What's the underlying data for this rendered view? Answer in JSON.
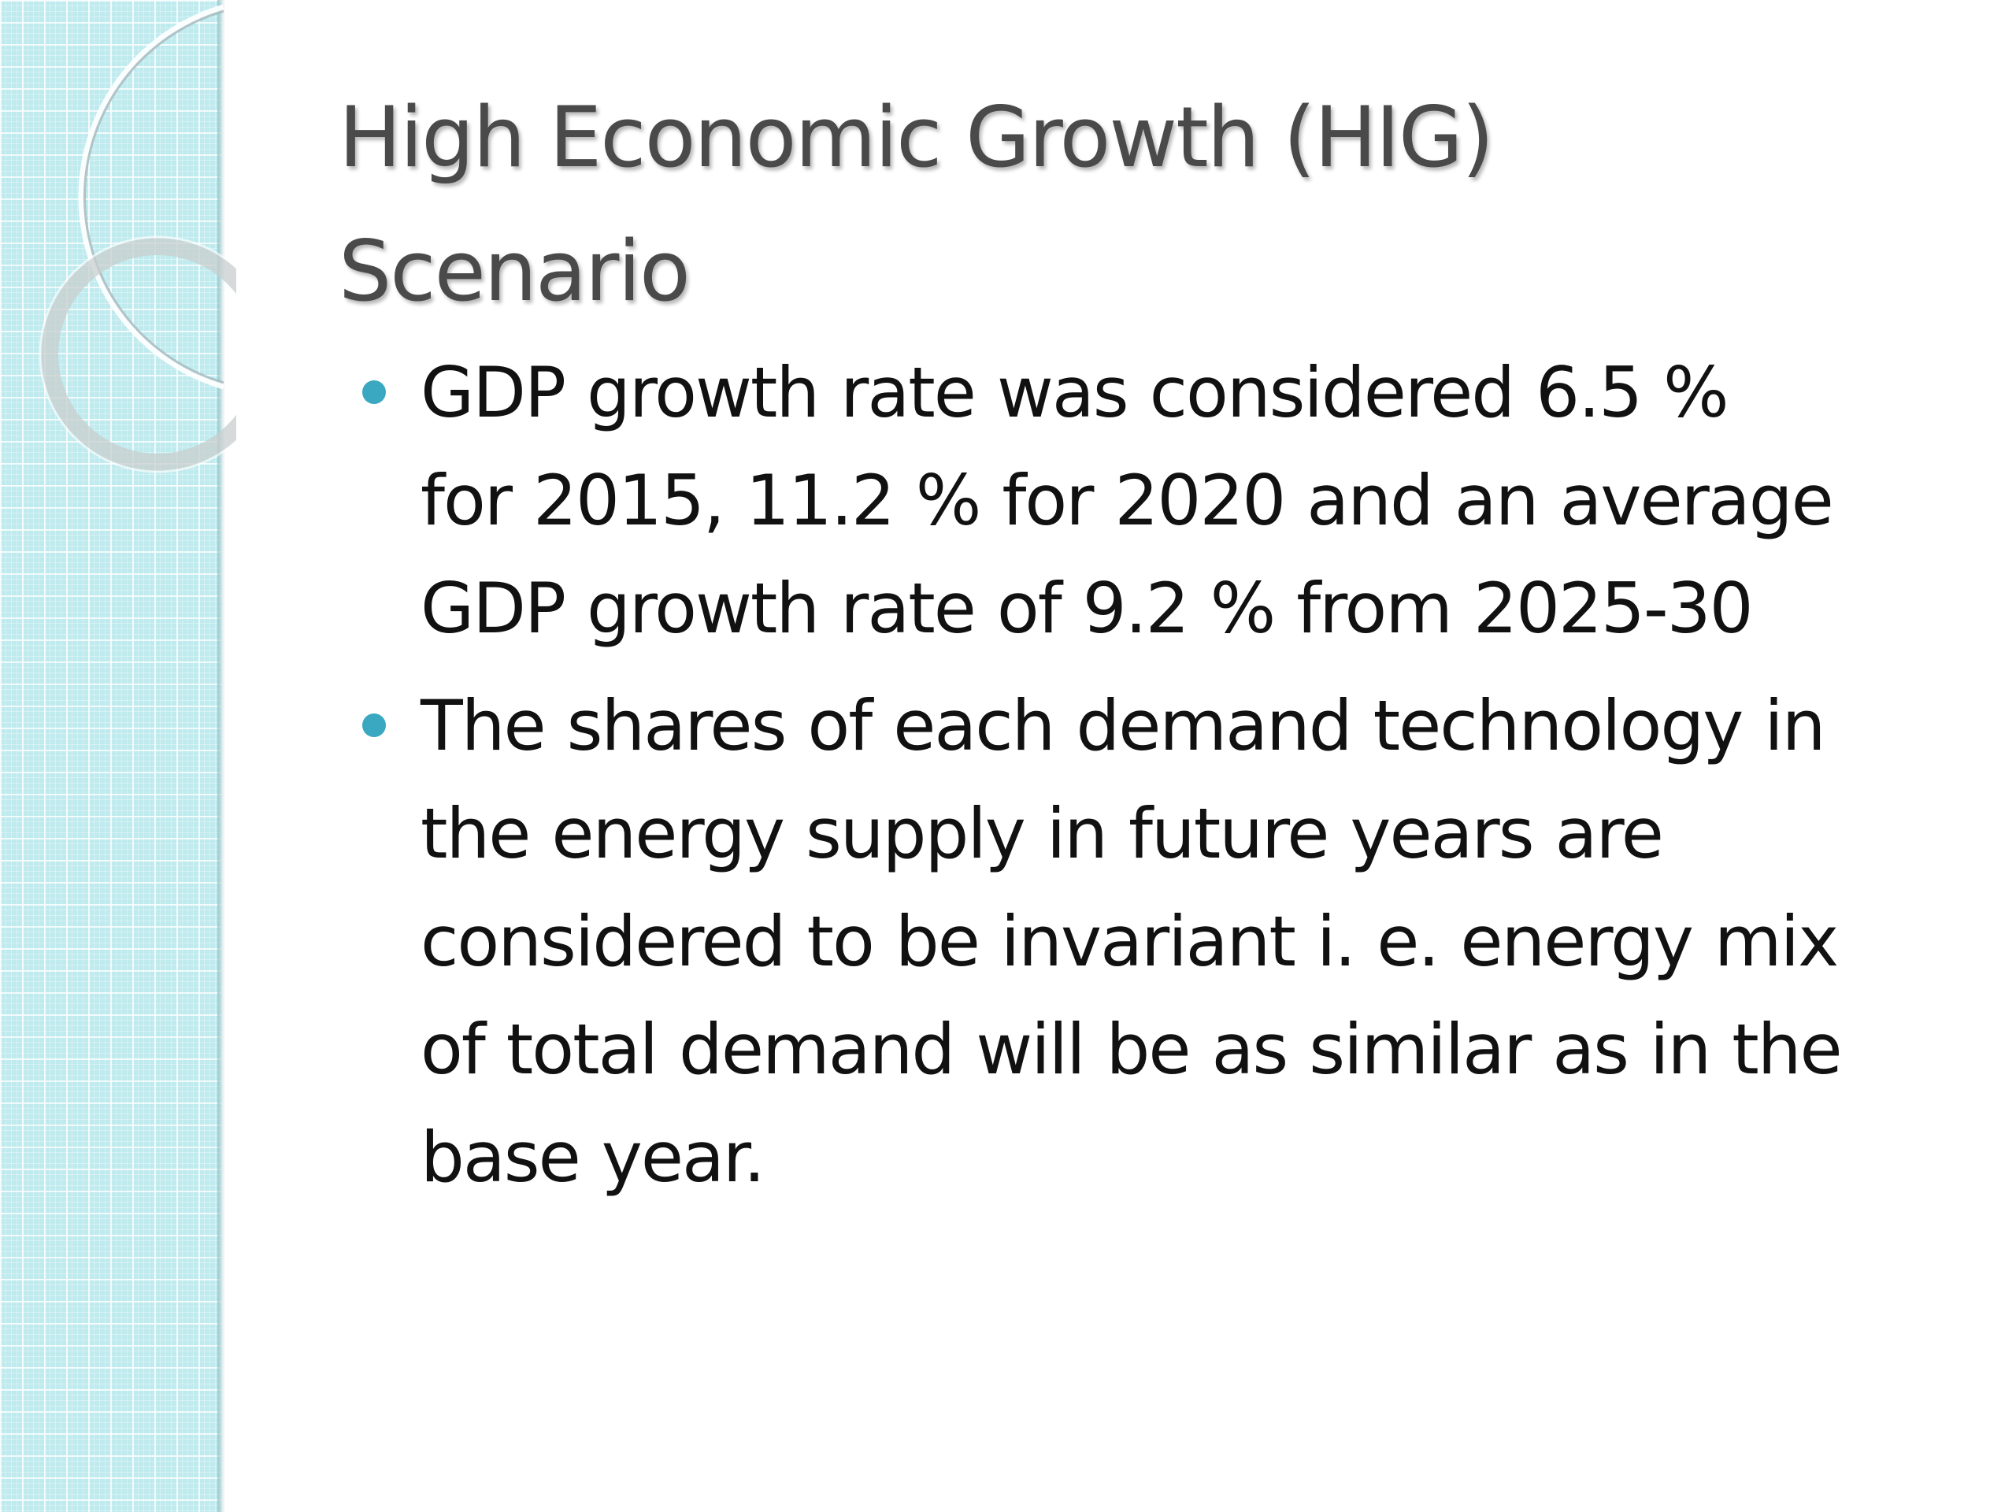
{
  "slide": {
    "title_lines": [
      "High Economic Growth (HIG)",
      "Scenario"
    ],
    "bullets": [
      {
        "lines": [
          "GDP growth rate was considered 6.5 %",
          "for 2015, 11.2 % for 2020 and an average",
          "GDP growth rate of 9.2 % from 2025-30"
        ]
      },
      {
        "lines": [
          "The shares of each demand technology in",
          "the energy supply in future years are",
          "considered to be invariant i. e. energy mix",
          "of total demand will be as similar as in the",
          "base year."
        ]
      }
    ]
  },
  "colors": {
    "side_panel": "#bfeaee",
    "bullet": "#3aa8c1",
    "title": "#4a4a4a",
    "body_text": "#111111"
  }
}
